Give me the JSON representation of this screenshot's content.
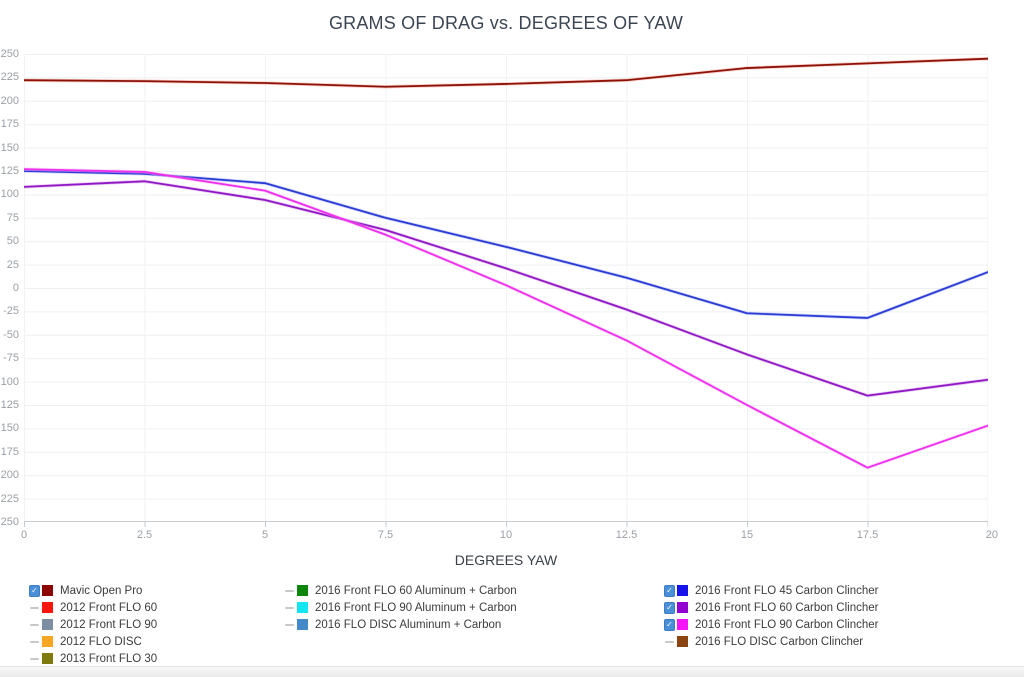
{
  "title": "GRAMS OF DRAG vs. DEGREES OF YAW",
  "x_axis": {
    "label": "DEGREES YAW",
    "ticks": [
      "0",
      "2.5",
      "5",
      "7.5",
      "10",
      "12.5",
      "15",
      "17.5",
      "20"
    ]
  },
  "y_axis": {
    "tick_labels": [
      "250",
      "225",
      "200",
      "175",
      "150",
      "125",
      "100",
      "75",
      "50",
      "25",
      "0",
      "-25",
      "-50",
      "-75",
      "100",
      "125",
      "150",
      "175",
      "200",
      "225",
      "250"
    ]
  },
  "chart_data": {
    "type": "line",
    "title": "GRAMS OF DRAG vs. DEGREES OF YAW",
    "xlabel": "DEGREES YAW",
    "ylabel": "",
    "x": [
      0,
      2.5,
      5,
      7.5,
      10,
      12.5,
      15,
      17.5,
      20
    ],
    "xlim": [
      0,
      20
    ],
    "ylim": [
      -250,
      250
    ],
    "y_tick_step": 25,
    "grid": true,
    "legend_position": "bottom",
    "series": [
      {
        "name": "Mavic Open Pro",
        "color": "#8c1208",
        "halo": "#ef8d80",
        "values": [
          222,
          221,
          219,
          215,
          218,
          222,
          235,
          240,
          245
        ]
      },
      {
        "name": "2016 Front FLO 45 Carbon Clincher",
        "color": "#2a3bd6",
        "halo": "#9aa4ee",
        "values": [
          125,
          122,
          112,
          75,
          44,
          11,
          -27,
          -32,
          17
        ]
      },
      {
        "name": "2016 Front FLO 60 Carbon Clincher",
        "color": "#9018c4",
        "halo": "#d08ae6",
        "values": [
          108,
          114,
          94,
          62,
          21,
          -23,
          -71,
          -115,
          -98
        ]
      },
      {
        "name": "2016 Front FLO 90 Carbon Clincher",
        "color": "#ee2fee",
        "halo": "#f9a4f4",
        "values": [
          127,
          124,
          104,
          57,
          3,
          -56,
          -125,
          -192,
          -147
        ]
      }
    ]
  },
  "legend": {
    "checkbox_color": "#4a8fd9",
    "checkbox_border": "#3d7cc0",
    "dash_color": "#c8c8c8",
    "columns": [
      {
        "items": [
          {
            "label": "Mavic Open Pro",
            "color": "#8b0603",
            "checked": true
          },
          {
            "label": "2012 Front FLO 60",
            "color": "#f8150c",
            "checked": false
          },
          {
            "label": "2012 Front FLO 90",
            "color": "#7d8ea3",
            "checked": false
          },
          {
            "label": "2012 FLO DISC",
            "color": "#f6a623",
            "checked": false
          },
          {
            "label": "2013 Front FLO 30",
            "color": "#7e7a0e",
            "checked": false
          }
        ]
      },
      {
        "items": [
          {
            "label": "2016 Front FLO 60 Aluminum + Carbon",
            "color": "#0c870c",
            "checked": false
          },
          {
            "label": "2016 Front FLO 90 Aluminum + Carbon",
            "color": "#13e6f2",
            "checked": false
          },
          {
            "label": "2016 FLO DISC Aluminum + Carbon",
            "color": "#4489c8",
            "checked": false
          }
        ]
      },
      {
        "items": [
          {
            "label": "2016 Front FLO 45 Carbon Clincher",
            "color": "#1612ea",
            "checked": true
          },
          {
            "label": "2016 Front FLO 60 Carbon Clincher",
            "color": "#9303d2",
            "checked": true
          },
          {
            "label": "2016 Front FLO 90 Carbon Clincher",
            "color": "#f713f7",
            "checked": true
          },
          {
            "label": "2016 FLO DISC Carbon Clincher",
            "color": "#8a4513",
            "checked": false
          }
        ]
      }
    ]
  },
  "grid_colors": {
    "horizontal": "#edeff1",
    "vertical": "#f1f2f4",
    "axis_line": "#c6cbd0",
    "tick": "#c6cbd0"
  }
}
